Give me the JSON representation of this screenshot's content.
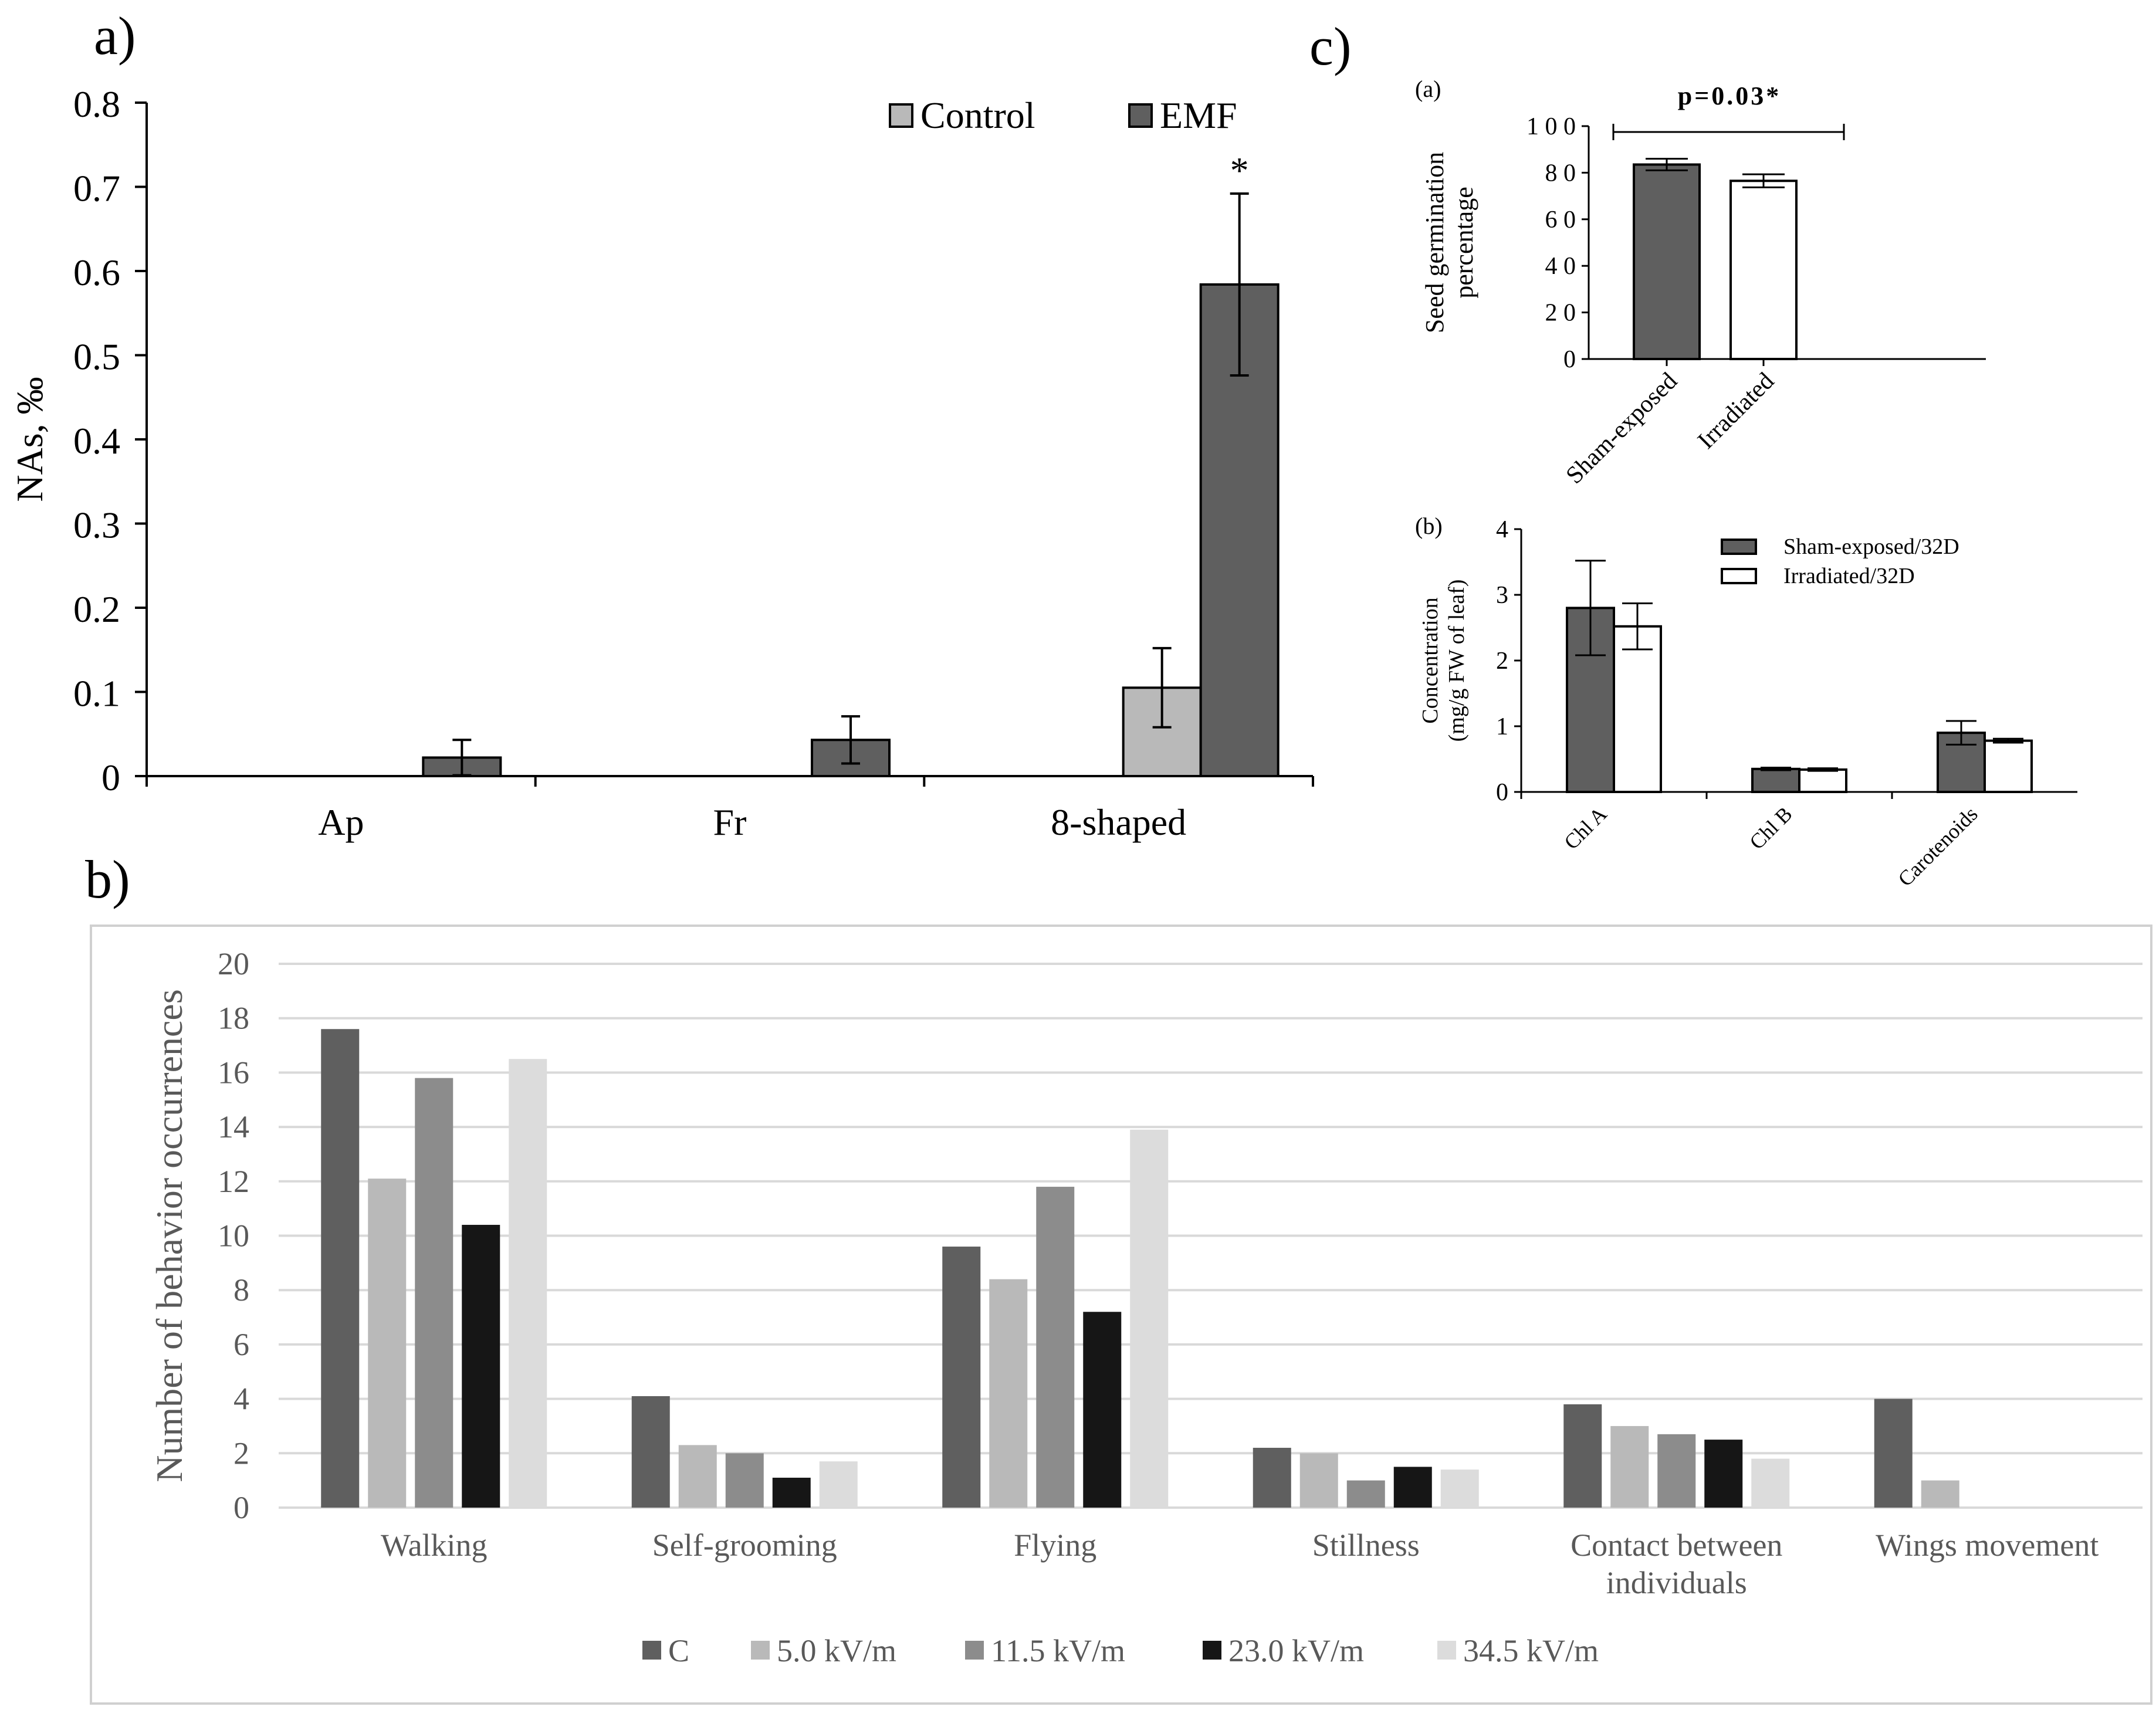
{
  "panels": {
    "a": {
      "label": "a)"
    },
    "b": {
      "label": "b)"
    },
    "c": {
      "label": "c)"
    }
  },
  "colors": {
    "dark_gray": "#5f5f5f",
    "light_gray": "#b9b9b9",
    "mid_gray": "#8c8c8c",
    "near_black": "#161616",
    "very_light_gray": "#dcdcdc",
    "bar_outline": "#000000",
    "white": "#ffffff",
    "gridline": "#d9d9d9"
  },
  "chart_data": [
    {
      "id": "a",
      "type": "bar",
      "title": "",
      "xlabel": "",
      "ylabel": "NAs, ‰",
      "categories": [
        "Ap",
        "Fr",
        "8-shaped"
      ],
      "ylim": [
        0,
        0.8
      ],
      "yticks": [
        "0",
        "0.1",
        "0.2",
        "0.3",
        "0.4",
        "0.5",
        "0.6",
        "0.7",
        "0.8"
      ],
      "grid": false,
      "legend": "top-right",
      "series": [
        {
          "name": "Control",
          "values": [
            0,
            0,
            0.105
          ],
          "errors": [
            0,
            0,
            0.047
          ]
        },
        {
          "name": "EMF",
          "values": [
            0.022,
            0.043,
            0.584
          ],
          "errors": [
            0.021,
            0.028,
            0.108
          ]
        }
      ],
      "annotations": [
        {
          "category": "8-shaped",
          "series": "EMF",
          "text": "*"
        }
      ]
    },
    {
      "id": "b",
      "type": "bar",
      "title": "",
      "xlabel": "",
      "ylabel": "Number of behavior occurrences",
      "categories": [
        "Walking",
        "Self-grooming",
        "Flying",
        "Stillness",
        "Contact between individuals",
        "Wings movement"
      ],
      "category_lines": [
        [
          "Walking"
        ],
        [
          "Self-grooming"
        ],
        [
          "Flying"
        ],
        [
          "Stillness"
        ],
        [
          "Contact between",
          "individuals"
        ],
        [
          "Wings movement"
        ]
      ],
      "ylim": [
        0,
        20
      ],
      "yticks": [
        "0",
        "2",
        "4",
        "6",
        "8",
        "10",
        "12",
        "14",
        "16",
        "18",
        "20"
      ],
      "grid": true,
      "legend": "bottom",
      "series": [
        {
          "name": "C",
          "values": [
            17.6,
            4.1,
            9.6,
            2.2,
            3.8,
            4.0
          ]
        },
        {
          "name": "5.0 kV/m",
          "values": [
            12.1,
            2.3,
            8.4,
            2.0,
            3.0,
            1.0
          ]
        },
        {
          "name": "11.5 kV/m",
          "values": [
            15.8,
            2.0,
            11.8,
            1.0,
            2.7,
            0
          ]
        },
        {
          "name": "23.0 kV/m",
          "values": [
            10.4,
            1.1,
            7.2,
            1.5,
            2.5,
            0
          ]
        },
        {
          "name": "34.5 kV/m",
          "values": [
            16.5,
            1.7,
            13.9,
            1.4,
            1.8,
            0
          ]
        }
      ]
    },
    {
      "id": "c-a",
      "sublabel": "(a)",
      "type": "bar",
      "title": "",
      "xlabel": "",
      "ylabel": "Seed germination percentage",
      "ylabel_lines": [
        "Seed germination",
        "percentage"
      ],
      "categories": [
        "Sham-exposed",
        "Irradiated"
      ],
      "ylim": [
        0,
        100
      ],
      "yticks": [
        "0",
        "2 0",
        "4 0",
        "6 0",
        "8 0",
        "1 0 0"
      ],
      "grid": false,
      "legend": "none",
      "series": [
        {
          "values": [
            83.5,
            76.5
          ],
          "errors": [
            2.5,
            2.8
          ]
        }
      ],
      "annotations": [
        {
          "from": "Sham-exposed",
          "to": "Irradiated",
          "text": "p=0.03*"
        }
      ]
    },
    {
      "id": "c-b",
      "sublabel": "(b)",
      "type": "bar",
      "title": "",
      "xlabel": "",
      "ylabel": "Concentration (mg/g FW of leaf)",
      "ylabel_lines": [
        "Concentration",
        "(mg/g FW of leaf)"
      ],
      "categories": [
        "Chl A",
        "Chl B",
        "Carotenoids"
      ],
      "ylim": [
        0,
        4
      ],
      "yticks": [
        "0",
        "1",
        "2",
        "3",
        "4"
      ],
      "grid": false,
      "legend": "top-right",
      "series": [
        {
          "name": "Sham-exposed/32D",
          "values": [
            2.8,
            0.35,
            0.9
          ],
          "errors": [
            0.72,
            0.02,
            0.18
          ]
        },
        {
          "name": "Irradiated/32D",
          "values": [
            2.52,
            0.34,
            0.78
          ],
          "errors": [
            0.35,
            0.02,
            0.03
          ]
        }
      ]
    }
  ]
}
